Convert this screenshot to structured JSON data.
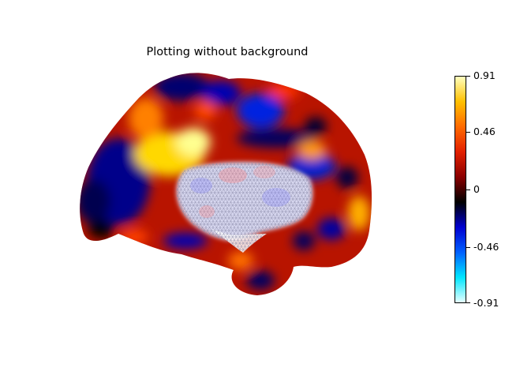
{
  "figure": {
    "title": "Plotting without background"
  },
  "colorbar": {
    "min": -0.91,
    "max": 0.91,
    "ticks": [
      {
        "value": 0.91,
        "label": "0.91"
      },
      {
        "value": 0.46,
        "label": "0.46"
      },
      {
        "value": 0,
        "label": "0"
      },
      {
        "value": -0.46,
        "label": "-0.46"
      },
      {
        "value": -0.91,
        "label": "-0.91"
      }
    ],
    "colormap": [
      "#e6ffff",
      "#00e5ff",
      "#0060ff",
      "#0000d0",
      "#000000",
      "#8b0000",
      "#e22000",
      "#ff6a00",
      "#ffc000",
      "#ffffc0"
    ]
  },
  "surface": {
    "view": "medial hemisphere",
    "colormap_name": "cold_hot"
  }
}
